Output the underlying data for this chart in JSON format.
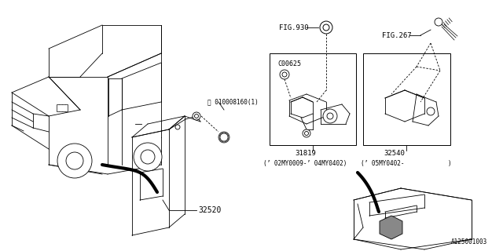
{
  "bg_color": "#ffffff",
  "line_color": "#000000",
  "part_numbers": {
    "main_unit": "32520",
    "bolt_label": "Ⓑ 010008160(1)",
    "connector": "C00625",
    "bracket1": "31819",
    "bracket2": "32540",
    "fig930": "FIG.930",
    "fig267": "FIG.267",
    "date1": "(’ 02MY0009-’ 04MY0402)",
    "date2": "(’ 05MY0402-            )",
    "diagram_id": "A125001003"
  }
}
